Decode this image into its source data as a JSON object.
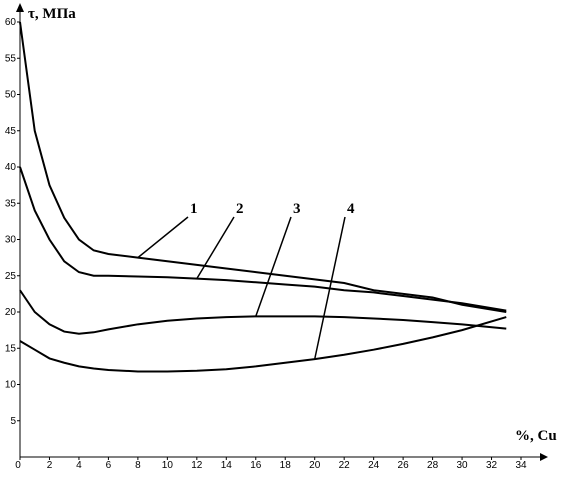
{
  "chart_data": {
    "type": "line",
    "y_label": "τ, МПа",
    "x_label": "%, Cu",
    "x": [
      0,
      1,
      2,
      3,
      4,
      5,
      6,
      8,
      10,
      12,
      14,
      16,
      18,
      20,
      22,
      24,
      26,
      28,
      30,
      33
    ],
    "series": [
      {
        "name": "1",
        "color": "#000000",
        "values": [
          60,
          45,
          37.5,
          33,
          30,
          28.5,
          28,
          27.5,
          27,
          26.5,
          26,
          25.5,
          25,
          24.5,
          24,
          23,
          22.5,
          22,
          21,
          20
        ]
      },
      {
        "name": "2",
        "color": "#000000",
        "values": [
          40,
          34,
          30,
          27,
          25.5,
          25,
          25,
          24.9,
          24.8,
          24.6,
          24.4,
          24.1,
          23.8,
          23.5,
          23,
          22.7,
          22.2,
          21.7,
          21.2,
          20.2
        ]
      },
      {
        "name": "3",
        "color": "#000000",
        "values": [
          23,
          20,
          18.3,
          17.3,
          17,
          17.2,
          17.6,
          18.3,
          18.8,
          19.1,
          19.3,
          19.4,
          19.4,
          19.4,
          19.3,
          19.1,
          18.9,
          18.6,
          18.3,
          17.7
        ]
      },
      {
        "name": "4",
        "color": "#000000",
        "values": [
          16,
          14.8,
          13.6,
          13,
          12.5,
          12.2,
          12,
          11.8,
          11.8,
          11.9,
          12.1,
          12.5,
          13,
          13.5,
          14.1,
          14.8,
          15.6,
          16.5,
          17.5,
          19.3
        ]
      }
    ],
    "xlim": [
      0,
      34
    ],
    "xticks": [
      0,
      2,
      4,
      6,
      8,
      10,
      12,
      14,
      16,
      18,
      20,
      22,
      24,
      26,
      28,
      30,
      32,
      34
    ],
    "ylim": [
      0,
      60
    ],
    "yticks": [
      5,
      10,
      15,
      20,
      25,
      30,
      35,
      40,
      45,
      50,
      55,
      60
    ],
    "grid": false
  }
}
